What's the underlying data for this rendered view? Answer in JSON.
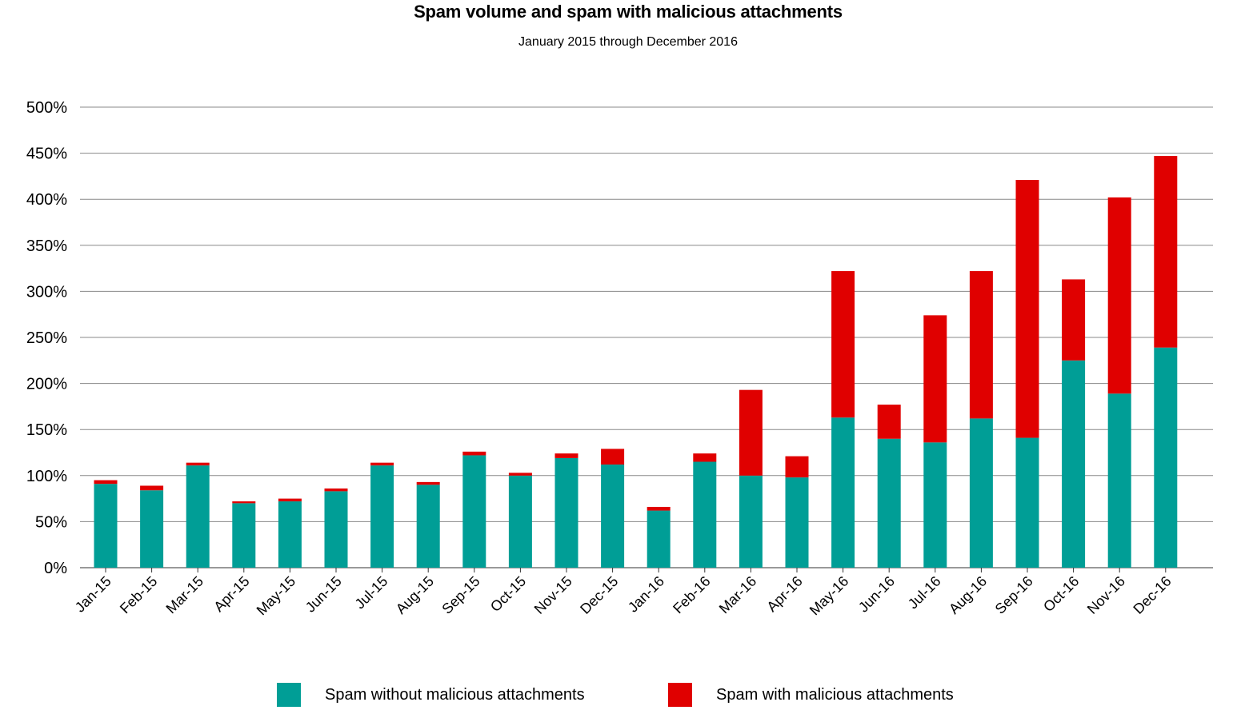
{
  "chart_data": {
    "type": "bar",
    "stacked": true,
    "title": "Spam volume and spam with malicious attachments",
    "subtitle": "January 2015 through December 2016",
    "categories": [
      "Jan-15",
      "Feb-15",
      "Mar-15",
      "Apr-15",
      "May-15",
      "Jun-15",
      "Jul-15",
      "Aug-15",
      "Sep-15",
      "Oct-15",
      "Nov-15",
      "Dec-15",
      "Jan-16",
      "Feb-16",
      "Mar-16",
      "Apr-16",
      "May-16",
      "Jun-16",
      "Jul-16",
      "Aug-16",
      "Sep-16",
      "Oct-16",
      "Nov-16",
      "Dec-16"
    ],
    "series": [
      {
        "name": "Spam without malicious attachments",
        "color": "#009E96",
        "values": [
          91,
          84,
          111,
          70,
          72,
          83,
          111,
          90,
          122,
          100,
          119,
          112,
          62,
          115,
          100,
          98,
          163,
          140,
          136,
          162,
          141,
          225,
          189,
          239
        ]
      },
      {
        "name": "Spam with malicious attachments",
        "color": "#E00000",
        "values": [
          4,
          5,
          3,
          2,
          3,
          3,
          3,
          3,
          4,
          3,
          5,
          17,
          4,
          9,
          93,
          23,
          159,
          37,
          138,
          160,
          280,
          88,
          213,
          208
        ]
      }
    ],
    "ylim": [
      0,
      500
    ],
    "yticks": [
      "0%",
      "50%",
      "100%",
      "150%",
      "200%",
      "250%",
      "300%",
      "350%",
      "400%",
      "450%",
      "500%"
    ],
    "ytick_values": [
      0,
      50,
      100,
      150,
      200,
      250,
      300,
      350,
      400,
      450,
      500
    ],
    "grid": true,
    "legend_position": "bottom"
  }
}
